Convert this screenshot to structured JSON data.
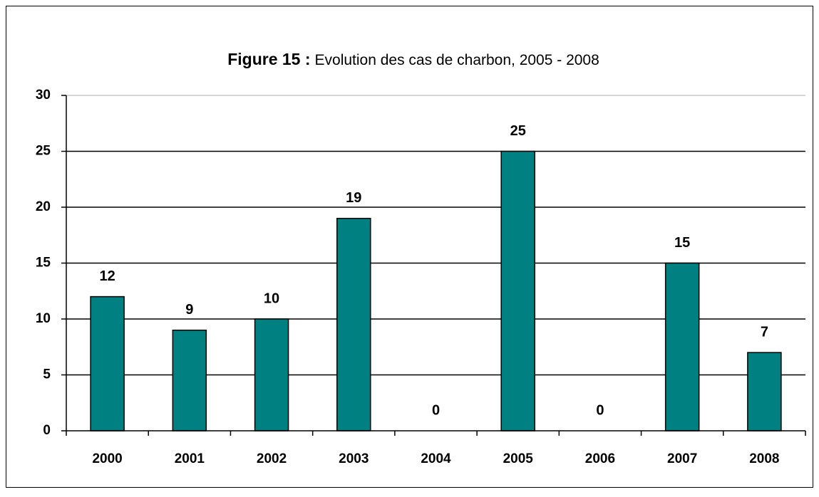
{
  "chart_data": {
    "type": "bar",
    "title_label": "Figure 15 :",
    "title": "Evolution des cas de charbon, 2005 - 2008",
    "categories": [
      "2000",
      "2001",
      "2002",
      "2003",
      "2004",
      "2005",
      "2006",
      "2007",
      "2008"
    ],
    "values": [
      12,
      9,
      10,
      19,
      0,
      25,
      0,
      15,
      7
    ],
    "color": "#008080",
    "ylim": [
      0,
      30
    ],
    "yticks": [
      0,
      5,
      10,
      15,
      20,
      25,
      30
    ],
    "grid": true
  }
}
